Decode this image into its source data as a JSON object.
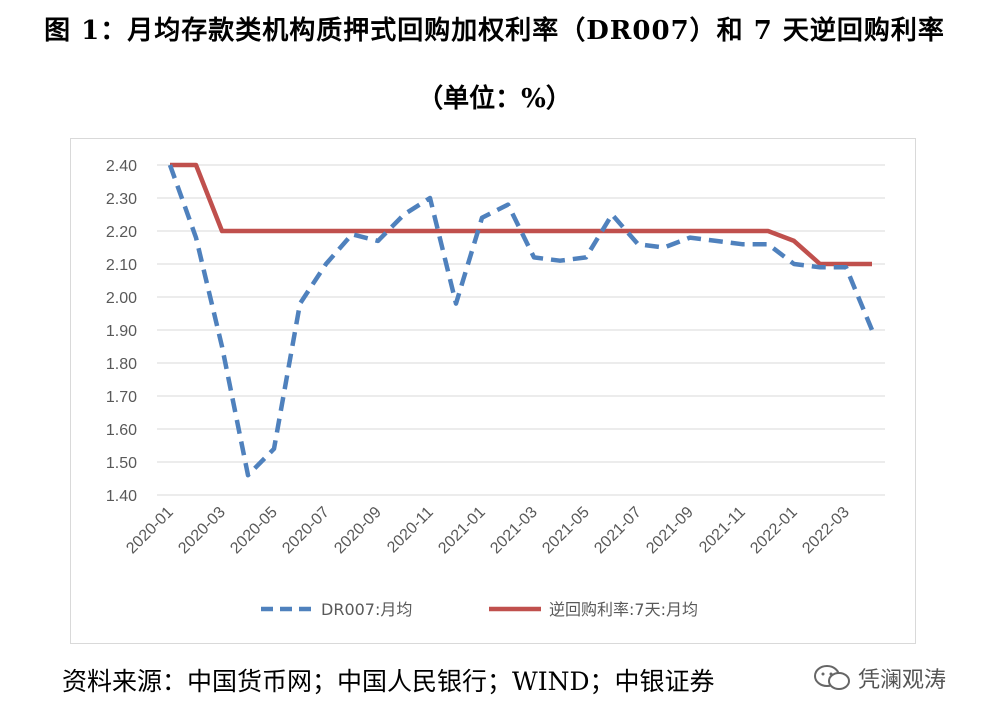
{
  "title": "图 1：月均存款类机构质押式回购加权利率（DR007）和 7 天逆回购利率",
  "unit": "（单位：%）",
  "source": "资料来源：中国货币网；中国人民银行；WIND；中银证券",
  "watermark": "凭澜观涛",
  "chart_data": {
    "type": "line",
    "title": "",
    "xlabel": "",
    "ylabel": "",
    "ylim": [
      1.4,
      2.4
    ],
    "yticks": [
      "2.40",
      "2.30",
      "2.20",
      "2.10",
      "2.00",
      "1.90",
      "1.80",
      "1.70",
      "1.60",
      "1.50",
      "1.40"
    ],
    "x": [
      "2020-01",
      "2020-02",
      "2020-03",
      "2020-04",
      "2020-05",
      "2020-06",
      "2020-07",
      "2020-08",
      "2020-09",
      "2020-10",
      "2020-11",
      "2020-12",
      "2021-01",
      "2021-02",
      "2021-03",
      "2021-04",
      "2021-05",
      "2021-06",
      "2021-07",
      "2021-08",
      "2021-09",
      "2021-10",
      "2021-11",
      "2021-12",
      "2022-01",
      "2022-02",
      "2022-03",
      "2022-04"
    ],
    "xtick_labels": [
      "2020-01",
      "2020-03",
      "2020-05",
      "2020-07",
      "2020-09",
      "2020-11",
      "2021-01",
      "2021-03",
      "2021-05",
      "2021-07",
      "2021-09",
      "2021-11",
      "2022-01",
      "2022-03"
    ],
    "grid": true,
    "legend_position": "bottom",
    "series": [
      {
        "name": "DR007:月均",
        "color": "#4f81bd",
        "style": "dashed",
        "values": [
          2.4,
          2.18,
          1.85,
          1.46,
          1.54,
          1.98,
          2.1,
          2.19,
          2.17,
          2.25,
          2.3,
          1.98,
          2.24,
          2.28,
          2.12,
          2.11,
          2.12,
          2.25,
          2.16,
          2.15,
          2.18,
          2.17,
          2.16,
          2.16,
          2.1,
          2.09,
          2.09,
          1.9
        ]
      },
      {
        "name": "逆回购利率:7天:月均",
        "color": "#c0504d",
        "style": "solid",
        "values": [
          2.4,
          2.4,
          2.2,
          2.2,
          2.2,
          2.2,
          2.2,
          2.2,
          2.2,
          2.2,
          2.2,
          2.2,
          2.2,
          2.2,
          2.2,
          2.2,
          2.2,
          2.2,
          2.2,
          2.2,
          2.2,
          2.2,
          2.2,
          2.2,
          2.17,
          2.1,
          2.1,
          2.1
        ]
      }
    ]
  }
}
